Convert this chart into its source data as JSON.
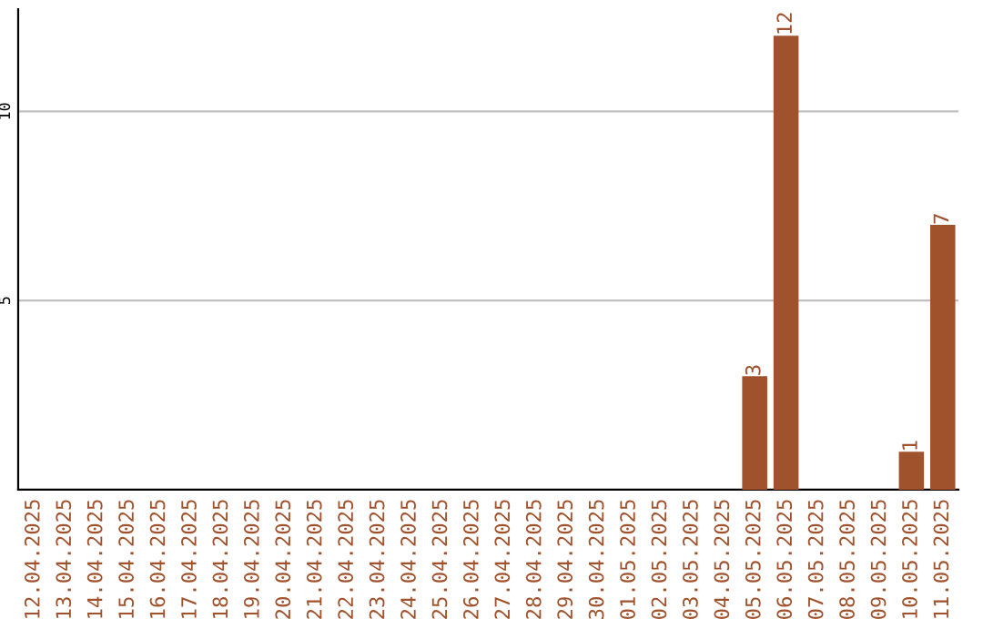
{
  "chart_data": {
    "type": "bar",
    "categories": [
      "12.04.2025",
      "13.04.2025",
      "14.04.2025",
      "15.04.2025",
      "16.04.2025",
      "17.04.2025",
      "18.04.2025",
      "19.04.2025",
      "20.04.2025",
      "21.04.2025",
      "22.04.2025",
      "23.04.2025",
      "24.04.2025",
      "25.04.2025",
      "26.04.2025",
      "27.04.2025",
      "28.04.2025",
      "29.04.2025",
      "30.04.2025",
      "01.05.2025",
      "02.05.2025",
      "03.05.2025",
      "04.05.2025",
      "05.05.2025",
      "06.05.2025",
      "07.05.2025",
      "08.05.2025",
      "09.05.2025",
      "10.05.2025",
      "11.05.2025"
    ],
    "values": [
      0,
      0,
      0,
      0,
      0,
      0,
      0,
      0,
      0,
      0,
      0,
      0,
      0,
      0,
      0,
      0,
      0,
      0,
      0,
      0,
      0,
      0,
      0,
      3,
      12,
      0,
      0,
      0,
      1,
      7
    ],
    "value_labels": [
      null,
      null,
      null,
      null,
      null,
      null,
      null,
      null,
      null,
      null,
      null,
      null,
      null,
      null,
      null,
      null,
      null,
      null,
      null,
      null,
      null,
      null,
      null,
      "3",
      "12",
      null,
      null,
      null,
      "1",
      "7"
    ],
    "color": "#a0522d",
    "ylim": [
      0,
      12.7
    ],
    "yticks": [
      5,
      10
    ],
    "grid": "y"
  }
}
